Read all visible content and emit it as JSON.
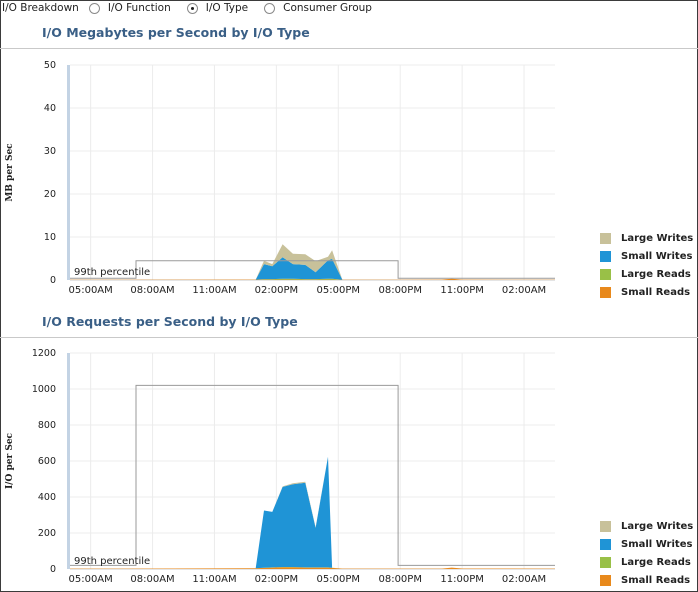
{
  "topbar": {
    "label": "I/O Breakdown",
    "options": [
      {
        "label": "I/O Function",
        "selected": false
      },
      {
        "label": "I/O Type",
        "selected": true
      },
      {
        "label": "Consumer Group",
        "selected": false
      }
    ]
  },
  "colors": {
    "large_writes": "#c8c19a",
    "small_writes": "#1f94d6",
    "large_reads": "#99c047",
    "small_reads": "#e8891c",
    "percentile_line": "#9a9a9a"
  },
  "legend": [
    "Large Writes",
    "Small Writes",
    "Large Reads",
    "Small Reads"
  ],
  "chart_data": [
    {
      "type": "area",
      "title": "I/O Megabytes per Second by I/O Type",
      "ylabel": "MB per Sec",
      "xlabel": "",
      "ylim": [
        0,
        50
      ],
      "yticks": [
        0,
        10,
        20,
        30,
        40,
        50
      ],
      "xlim": [
        4.0,
        27.5
      ],
      "xticks": [
        5,
        8,
        11,
        14,
        17,
        20,
        23,
        26
      ],
      "xtick_labels": [
        "05:00AM",
        "08:00AM",
        "11:00AM",
        "02:00PM",
        "05:00PM",
        "08:00PM",
        "11:00PM",
        "02:00AM"
      ],
      "grid": true,
      "legend_position": "bottom-right",
      "annotation": "99th percentile",
      "percentile_band": {
        "x": [
          7.2,
          19.9
        ],
        "value": 4.5,
        "baseline": 0.4
      },
      "x": [
        4.0,
        6.9,
        13.0,
        13.4,
        13.8,
        14.3,
        14.8,
        15.4,
        15.9,
        16.5,
        16.7,
        17.2,
        19.9,
        22.0,
        22.5,
        23.0,
        27.5
      ],
      "series": [
        {
          "name": "Large Writes",
          "values": [
            0,
            0,
            0,
            0.8,
            0.5,
            3.0,
            2.4,
            2.5,
            2.6,
            0.8,
            2.0,
            0,
            0,
            0,
            0,
            0,
            0
          ]
        },
        {
          "name": "Small Writes",
          "values": [
            0,
            0,
            0,
            3.5,
            3.0,
            5.0,
            3.4,
            3.3,
            1.6,
            4.3,
            4.6,
            0,
            0,
            0,
            0,
            0,
            0
          ]
        },
        {
          "name": "Large Reads",
          "values": [
            0,
            0,
            0,
            0.1,
            0.1,
            0.2,
            0.2,
            0.1,
            0.1,
            0.2,
            0.2,
            0,
            0,
            0,
            0,
            0,
            0
          ]
        },
        {
          "name": "Small Reads",
          "values": [
            0.05,
            0.05,
            0.1,
            0.1,
            0.1,
            0.1,
            0.1,
            0.1,
            0.1,
            0.1,
            0.1,
            0.05,
            0.05,
            0.1,
            0.3,
            0.1,
            0.05
          ]
        }
      ]
    },
    {
      "type": "area",
      "title": "I/O Requests per Second by I/O Type",
      "ylabel": "I/O per Sec",
      "xlabel": "",
      "ylim": [
        0,
        1200
      ],
      "yticks": [
        0,
        200,
        400,
        600,
        800,
        1000,
        1200
      ],
      "xlim": [
        4.0,
        27.5
      ],
      "xticks": [
        5,
        8,
        11,
        14,
        17,
        20,
        23,
        26
      ],
      "xtick_labels": [
        "05:00AM",
        "08:00AM",
        "11:00AM",
        "02:00PM",
        "05:00PM",
        "08:00PM",
        "11:00PM",
        "02:00AM"
      ],
      "grid": true,
      "legend_position": "bottom-right",
      "annotation": "99th percentile",
      "percentile_band": {
        "x": [
          7.2,
          19.9
        ],
        "value": 1020,
        "baseline": 20
      },
      "x": [
        4.0,
        6.9,
        13.0,
        13.4,
        13.8,
        14.3,
        14.8,
        15.4,
        15.9,
        16.5,
        16.7,
        17.2,
        19.9,
        22.0,
        22.5,
        23.0,
        27.5
      ],
      "series": [
        {
          "name": "Large Writes",
          "values": [
            0,
            0,
            0,
            0,
            0,
            3,
            5,
            6,
            3,
            0,
            0,
            0,
            0,
            0,
            0,
            0,
            0
          ]
        },
        {
          "name": "Small Writes",
          "values": [
            0,
            0,
            0,
            318,
            308,
            445,
            460,
            470,
            220,
            615,
            0,
            0,
            0,
            0,
            0,
            0,
            0
          ]
        },
        {
          "name": "Large Reads",
          "values": [
            0,
            0,
            0,
            1,
            1,
            1,
            1,
            1,
            1,
            1,
            1,
            0,
            0,
            0,
            0,
            0,
            0
          ]
        },
        {
          "name": "Small Reads",
          "values": [
            2,
            2,
            4,
            6,
            8,
            10,
            10,
            8,
            8,
            8,
            6,
            2,
            2,
            2,
            8,
            3,
            2
          ]
        }
      ]
    }
  ]
}
